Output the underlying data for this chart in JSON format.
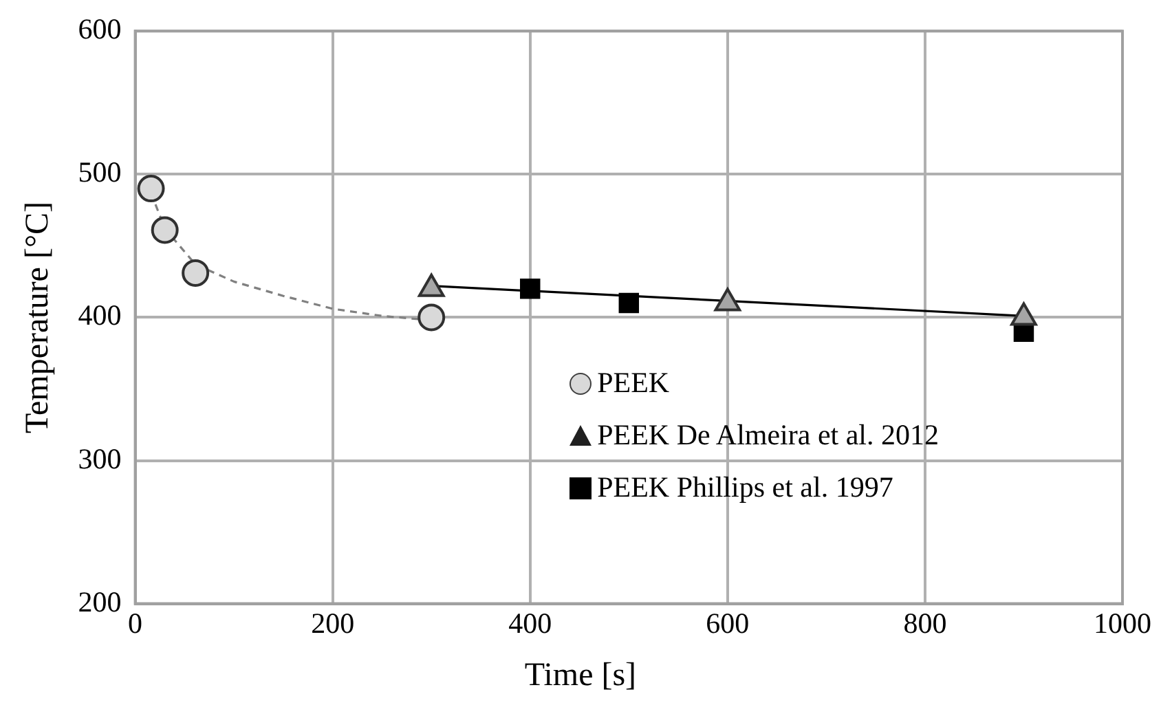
{
  "chart_data": {
    "type": "scatter",
    "xlabel": "Time [s]",
    "ylabel": "Temperature [°C]",
    "xlim": [
      0,
      1000
    ],
    "xticks": [
      0,
      200,
      400,
      600,
      800,
      1000
    ],
    "ylim": [
      200,
      600
    ],
    "yticks": [
      200,
      300,
      400,
      500,
      600
    ],
    "grid": true,
    "legend": "bottom right",
    "series": [
      {
        "name": "PEEK",
        "type": "scatter",
        "marker": "circle",
        "color": "#d9d9d9",
        "x": [
          16,
          30,
          61,
          300
        ],
        "values": [
          490,
          461,
          431,
          400
        ]
      },
      {
        "name": "PEEK De Almeira et al. 2012",
        "type": "scatter",
        "marker": "triangle",
        "color": "#a6a6a6",
        "x": [
          300,
          600,
          900
        ],
        "values": [
          420,
          410,
          400
        ]
      },
      {
        "name": "PEEK Phillips et al. 1997",
        "type": "scatter",
        "marker": "square",
        "color": "#000000",
        "x": [
          400,
          500,
          900
        ],
        "values": [
          420,
          410,
          390
        ]
      },
      {
        "type": "line",
        "marker": "none",
        "line_style": "dashed",
        "color": "#808080",
        "x": [
          16,
          30,
          61,
          100,
          150,
          200,
          250,
          300
        ],
        "values": [
          487,
          462,
          437,
          425,
          415,
          406,
          401,
          398
        ]
      },
      {
        "type": "line",
        "marker": "none",
        "line_style": "solid",
        "color": "#000000",
        "x": [
          300,
          900
        ],
        "values": [
          422,
          401
        ]
      }
    ]
  }
}
